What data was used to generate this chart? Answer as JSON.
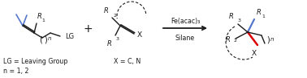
{
  "bg_color": "#ffffff",
  "figsize": [
    3.78,
    0.97
  ],
  "dpi": 100,
  "fe_label": "Fe(acac)₃",
  "silane_label": "Silane",
  "lg_label": "LG = Leaving Group",
  "n_label": "n = 1, 2",
  "x_label": "X = C, N",
  "text_color": "#1a1a1a",
  "blue_color": "#5577CC",
  "red_color": "#DD0000"
}
